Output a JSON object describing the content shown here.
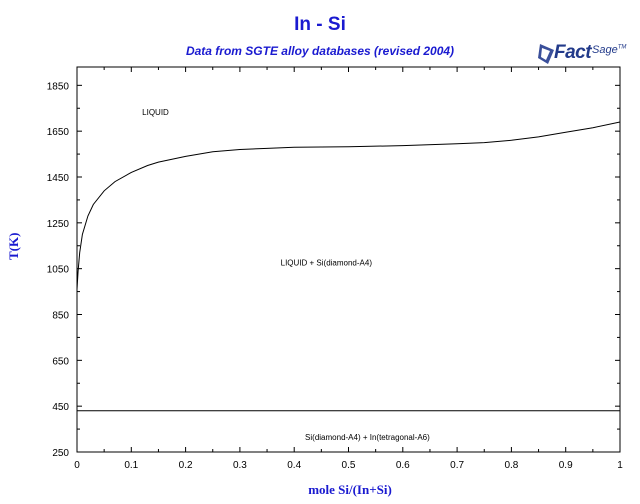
{
  "header": {
    "title": "In - Si",
    "subtitle": "Data from SGTE alloy databases (revised 2004)"
  },
  "logo": {
    "word1": "Fact",
    "word2": "Sage",
    "mark": "TM"
  },
  "chart_data": {
    "type": "line",
    "title": "In - Si",
    "subtitle": "Data from SGTE alloy databases (revised 2004)",
    "xlabel": "mole Si/(In+Si)",
    "ylabel": "T(K)",
    "xlim": [
      0,
      1
    ],
    "ylim": [
      250,
      1930
    ],
    "xticks": [
      0,
      0.1,
      0.2,
      0.3,
      0.4,
      0.5,
      0.6,
      0.7,
      0.8,
      0.9,
      1
    ],
    "xtick_labels": [
      "0",
      "0.1",
      "0.2",
      "0.3",
      "0.4",
      "0.5",
      "0.6",
      "0.7",
      "0.8",
      "0.9",
      "1"
    ],
    "yticks": [
      250,
      450,
      650,
      850,
      1050,
      1250,
      1450,
      1650,
      1850
    ],
    "ytick_labels": [
      "250",
      "450",
      "650",
      "850",
      "1050",
      "1250",
      "1450",
      "1650",
      "1850"
    ],
    "grid": false,
    "series": [
      {
        "x": [
          0,
          0.002,
          0.005,
          0.01,
          0.02,
          0.03,
          0.05,
          0.07,
          0.1,
          0.13,
          0.15,
          0.2,
          0.25,
          0.3,
          0.35,
          0.4,
          0.5,
          0.6,
          0.7,
          0.75,
          0.8,
          0.85,
          0.9,
          0.95,
          1.0
        ],
        "y": [
          960,
          1040,
          1120,
          1200,
          1280,
          1330,
          1390,
          1430,
          1470,
          1500,
          1515,
          1540,
          1560,
          1570,
          1575,
          1580,
          1582,
          1587,
          1595,
          1600,
          1610,
          1625,
          1645,
          1665,
          1690
        ]
      },
      {
        "x": [
          0,
          1
        ],
        "y": [
          430,
          430
        ]
      }
    ],
    "annotations": [
      {
        "text": "LIQUID",
        "x": 0.12,
        "y": 1720
      },
      {
        "text": "LIQUID + Si(diamond-A4)",
        "x": 0.375,
        "y": 1063
      },
      {
        "text": "Si(diamond-A4) + In(tetragonal-A6)",
        "x": 0.42,
        "y": 303
      }
    ]
  }
}
